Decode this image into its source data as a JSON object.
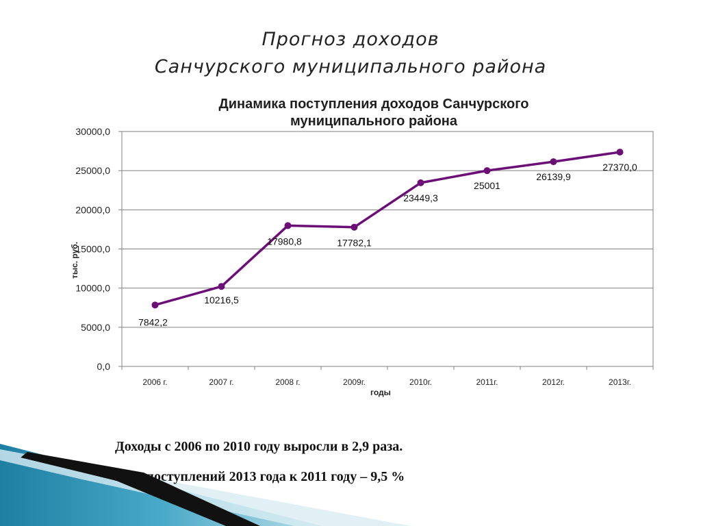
{
  "slide": {
    "title_line1": "Прогноз доходов",
    "title_line2": "Санчурского муниципального района"
  },
  "chart_data": {
    "type": "line",
    "title": "Динамика поступления доходов Санчурского муниципального района",
    "title_lines": [
      "Динамика поступления доходов Санчурского",
      "муниципального района"
    ],
    "xlabel": "годы",
    "ylabel": "тыс. руб.",
    "categories": [
      "2006 г.",
      "2007 г.",
      "2008 г.",
      "2009г.",
      "2010г.",
      "2011г.",
      "2012г.",
      "2013г."
    ],
    "series": [
      {
        "values": [
          7842.2,
          10216.5,
          17980.8,
          17782.1,
          23449.3,
          25001,
          26139.9,
          27370.0
        ],
        "labels": [
          "7842,2",
          "10216,5",
          "17980,8",
          "17782,1",
          "23449,3",
          "25001",
          "26139,9",
          "27370,0"
        ],
        "color": "#6b0f77"
      }
    ],
    "ylim": [
      0,
      30000
    ],
    "yticks": [
      0,
      5000,
      10000,
      15000,
      20000,
      25000,
      30000
    ],
    "ytick_labels": [
      "0,0",
      "5000,0",
      "10000,0",
      "15000,0",
      "20000,0",
      "25000,0",
      "30000,0"
    ],
    "grid": true,
    "legend": "none"
  },
  "notes": {
    "line1": "Доходы с 2006 по 2010 году выросли в 2,9 раза.",
    "line2": "Рост  поступлений 2013 года к 2011 году – 9,5 %"
  },
  "colors": {
    "series": "#6b0f77",
    "grid": "#808080",
    "decor_teal": "#2a8fb0",
    "decor_black": "#111111"
  }
}
